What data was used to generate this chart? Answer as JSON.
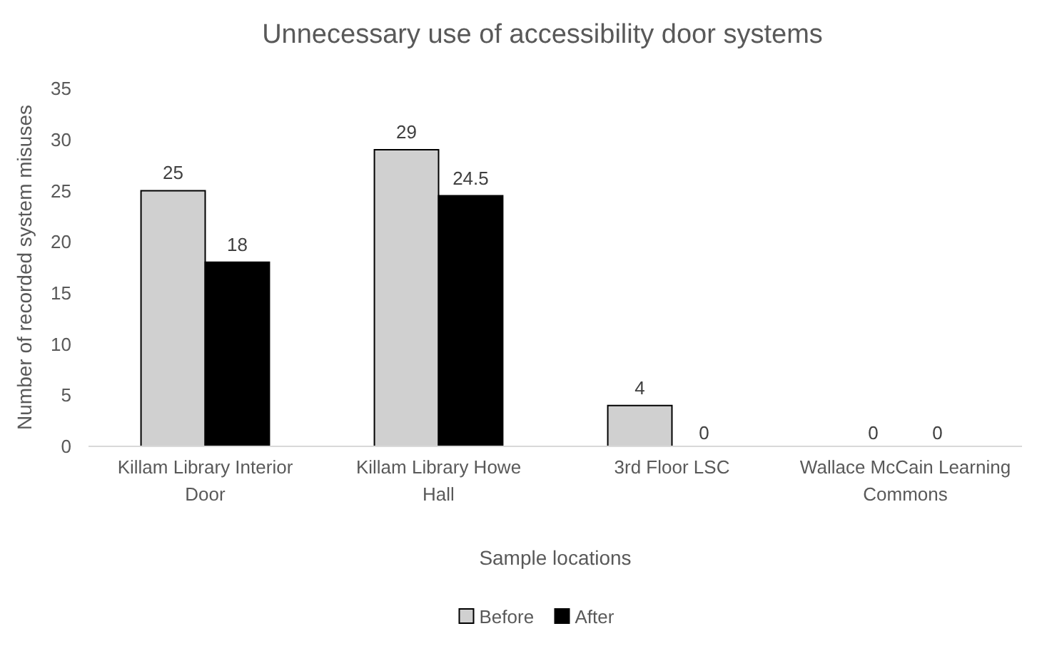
{
  "chart_data": {
    "type": "bar",
    "title": "Unnecessary use of accessibility door systems",
    "xlabel": "Sample locations",
    "ylabel": "Number  of recorded system misuses",
    "categories": [
      "Killam Library Interior Door",
      "Killam Library Howe Hall",
      "3rd Floor LSC",
      "Wallace McCain Learning Commons"
    ],
    "series": [
      {
        "name": "Before",
        "color": "#d0d0d0",
        "values": [
          25,
          29,
          4,
          0
        ]
      },
      {
        "name": "After",
        "color": "#000000",
        "values": [
          18,
          24.5,
          0,
          0
        ]
      }
    ],
    "ylim": [
      0,
      35
    ],
    "yticks": [
      0,
      5,
      10,
      15,
      20,
      25,
      30,
      35
    ],
    "grid": false,
    "legend": "bottom",
    "data_labels": true
  }
}
